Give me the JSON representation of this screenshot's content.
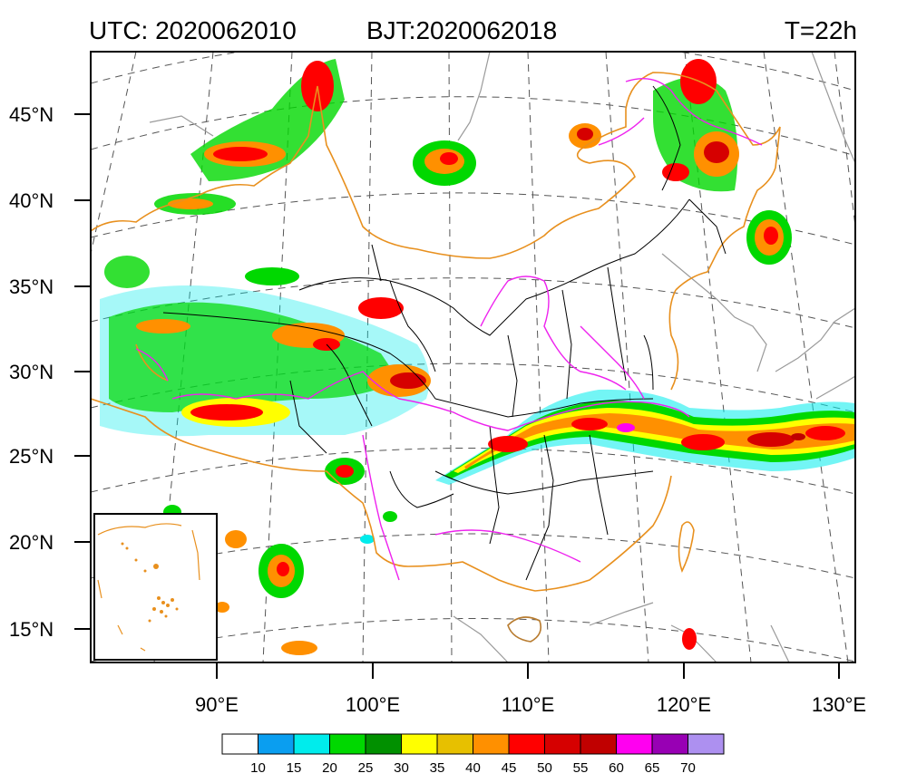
{
  "header": {
    "utc": "UTC: 2020062010",
    "bjt": "BJT:2020062018",
    "lead": "T=22h"
  },
  "map": {
    "lat_labels": [
      "45°N",
      "40°N",
      "35°N",
      "30°N",
      "25°N",
      "20°N",
      "15°N"
    ],
    "lon_labels": [
      "90°E",
      "100°E",
      "110°E",
      "120°E",
      "130°E"
    ],
    "colors": {
      "coast": "#9a9a9a",
      "border": "#e8901e",
      "province": "#000000",
      "river": "#ee22ee",
      "graticule": "#555555"
    }
  },
  "colorbar": {
    "labels": [
      "10",
      "15",
      "20",
      "25",
      "30",
      "35",
      "40",
      "45",
      "50",
      "55",
      "60",
      "65",
      "70"
    ],
    "colors": [
      "#ffffff",
      "#0a9ef0",
      "#00ecec",
      "#00d800",
      "#019000",
      "#ffff00",
      "#e7c000",
      "#ff9000",
      "#ff0000",
      "#d60000",
      "#c00000",
      "#ff00f0",
      "#9800b4",
      "#ad90f0"
    ]
  }
}
